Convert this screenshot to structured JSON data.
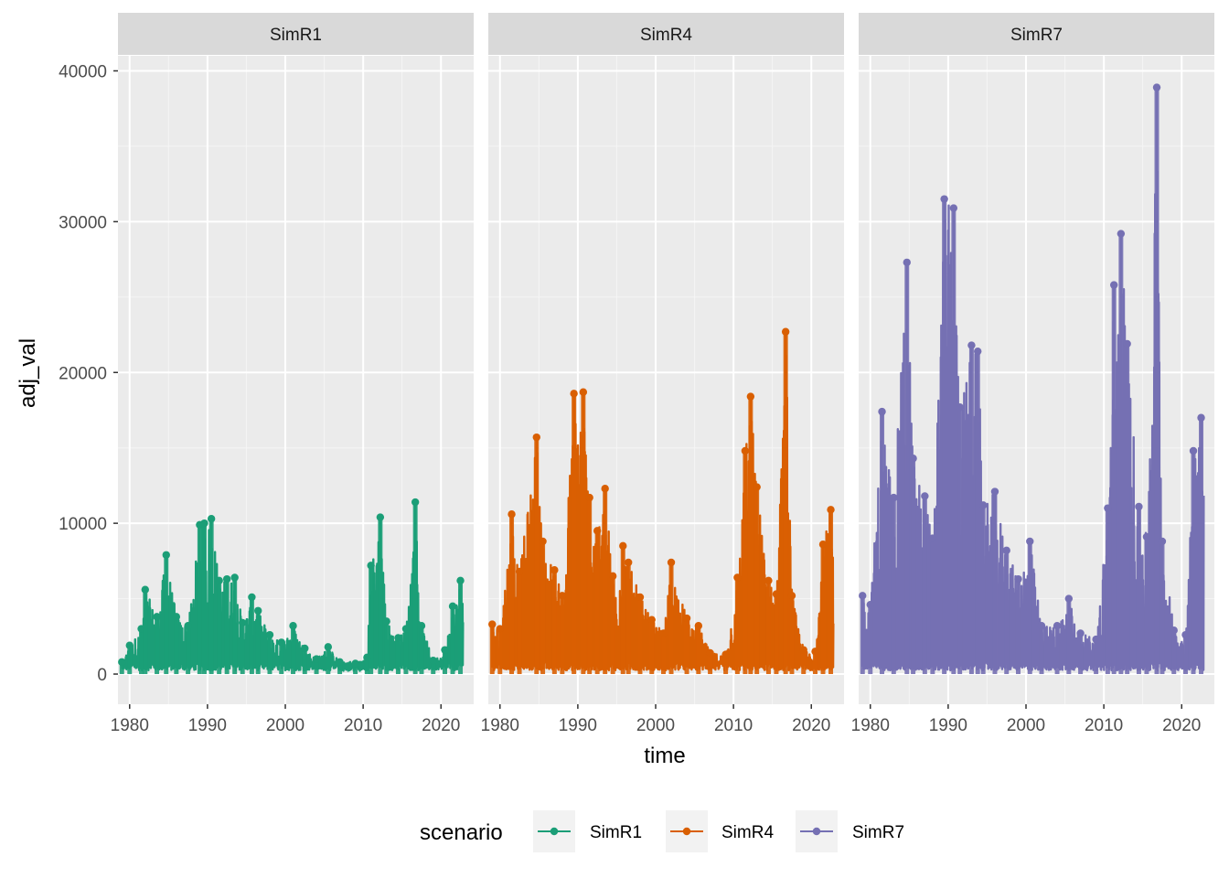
{
  "chart_data": {
    "type": "line",
    "facet_by": "scenario",
    "xlabel": "time",
    "ylabel": "adj_val",
    "xlim": [
      1978.5,
      2024.2
    ],
    "ylim": [
      -2000,
      41000
    ],
    "x_ticks": [
      1980,
      1990,
      2000,
      2010,
      2020
    ],
    "y_ticks": [
      0,
      10000,
      20000,
      30000,
      40000
    ],
    "x_tick_labels": [
      "1980",
      "1990",
      "2000",
      "2010",
      "2020"
    ],
    "y_tick_labels": [
      "0",
      "10000",
      "20000",
      "30000",
      "40000"
    ],
    "grid": true,
    "legend": {
      "title": "scenario",
      "position": "bottom",
      "entries": [
        "SimR1",
        "SimR4",
        "SimR7"
      ]
    },
    "series": [
      {
        "name": "SimR1",
        "color": "#1B9E77",
        "panel_label": "SimR1",
        "x": [
          1979,
          1980,
          1981.5,
          1982,
          1983.5,
          1984.7,
          1986,
          1987.5,
          1989,
          1989.6,
          1990.5,
          1991.5,
          1992.5,
          1993.5,
          1994.5,
          1995.7,
          1996.5,
          1998,
          1999.5,
          2001,
          2002.5,
          2004,
          2005.5,
          2007,
          2009,
          2010.5,
          2011,
          2012.2,
          2013,
          2014.5,
          2015.5,
          2016.7,
          2017.5,
          2019,
          2020.5,
          2021.5,
          2022.5
        ],
        "values": [
          800,
          1900,
          3000,
          5600,
          3800,
          7900,
          3800,
          3200,
          9900,
          10000,
          10300,
          6200,
          6300,
          6400,
          3400,
          5100,
          4200,
          2600,
          2100,
          3200,
          1700,
          1000,
          1800,
          800,
          700,
          1100,
          7200,
          10400,
          3500,
          2400,
          3000,
          11400,
          3200,
          900,
          1600,
          4500,
          6200
        ]
      },
      {
        "name": "SimR4",
        "color": "#D95F02",
        "panel_label": "SimR4",
        "x": [
          1979,
          1980,
          1981.5,
          1982.5,
          1984.7,
          1985.5,
          1987,
          1988,
          1989.5,
          1990.7,
          1991.5,
          1992.5,
          1993.5,
          1994.5,
          1995.8,
          1996.5,
          1998,
          1999.5,
          2001,
          2002,
          2004,
          2005.5,
          2007,
          2009,
          2010.5,
          2011.5,
          2012.2,
          2013,
          2014.5,
          2015.5,
          2016.7,
          2017.5,
          2019,
          2020.5,
          2021.5,
          2022.5
        ],
        "values": [
          3300,
          3000,
          10600,
          6800,
          15700,
          8800,
          6900,
          5200,
          18600,
          18700,
          11700,
          9500,
          12300,
          6500,
          8500,
          7400,
          5100,
          3600,
          2700,
          7400,
          3700,
          3200,
          1400,
          1300,
          6400,
          14800,
          18400,
          12400,
          6200,
          5300,
          22700,
          5200,
          1600,
          1500,
          8600,
          10900
        ]
      },
      {
        "name": "SimR7",
        "color": "#7570B3",
        "panel_label": "SimR7",
        "x": [
          1979,
          1980,
          1981.5,
          1983,
          1984.7,
          1985.5,
          1987,
          1988,
          1989.5,
          1990.7,
          1991.5,
          1993,
          1993.8,
          1994.5,
          1996,
          1997.5,
          1999,
          2000.5,
          2002,
          2004,
          2005.5,
          2007,
          2009,
          2010.5,
          2011.3,
          2012.2,
          2013,
          2014.5,
          2015.5,
          2016.8,
          2017.5,
          2019,
          2020.5,
          2021.5,
          2022.5
        ],
        "values": [
          5200,
          4600,
          17400,
          11700,
          27300,
          14300,
          11800,
          9000,
          31500,
          30900,
          17700,
          21800,
          21400,
          11200,
          12100,
          8200,
          6300,
          8800,
          3200,
          3200,
          5000,
          2700,
          2300,
          11000,
          25800,
          29200,
          21900,
          11100,
          9100,
          38900,
          8800,
          2900,
          2600,
          14800,
          17000
        ]
      }
    ]
  }
}
